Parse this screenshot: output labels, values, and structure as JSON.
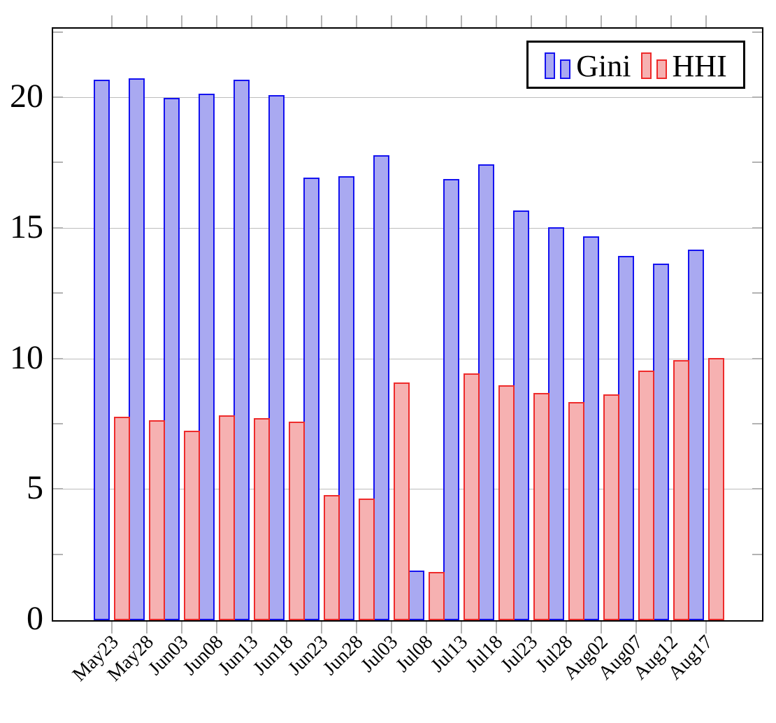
{
  "chart_data": {
    "type": "bar",
    "title": "",
    "xlabel": "",
    "ylabel": "",
    "categories": [
      "May23",
      "May28",
      "Jun03",
      "Jun08",
      "Jun13",
      "Jun18",
      "Jun23",
      "Jun28",
      "Jul03",
      "Jul08",
      "Jul13",
      "Jul18",
      "Jul23",
      "Jul28",
      "Aug02",
      "Aug07",
      "Aug12",
      "Aug17"
    ],
    "series": [
      {
        "name": "Gini",
        "fill": "#a9a9f1",
        "stroke": "#1412f0",
        "values": [
          20.7,
          20.75,
          20.0,
          20.15,
          20.7,
          20.1,
          16.95,
          17.0,
          17.8,
          1.9,
          16.9,
          17.45,
          15.7,
          15.05,
          14.7,
          13.95,
          13.65,
          14.2
        ]
      },
      {
        "name": "HHI",
        "fill": "#f6b1b1",
        "stroke": "#ee2b2b",
        "values": [
          7.8,
          7.65,
          7.25,
          7.85,
          7.75,
          7.6,
          4.8,
          4.65,
          9.1,
          1.85,
          9.45,
          9.0,
          8.7,
          8.35,
          8.65,
          9.55,
          9.95,
          10.05
        ]
      }
    ],
    "ylim": [
      0,
      22.65
    ],
    "y_tick_labels": [
      "0",
      "5",
      "10",
      "15",
      "20"
    ],
    "y_tick_values": [
      0,
      5,
      10,
      15,
      20
    ],
    "y_minor_tick_step": 2.5,
    "grid": "horizontal major gridlines",
    "legend_position": "top-right"
  },
  "legend": {
    "entries": [
      {
        "label": "Gini"
      },
      {
        "label": "HHI"
      }
    ]
  }
}
